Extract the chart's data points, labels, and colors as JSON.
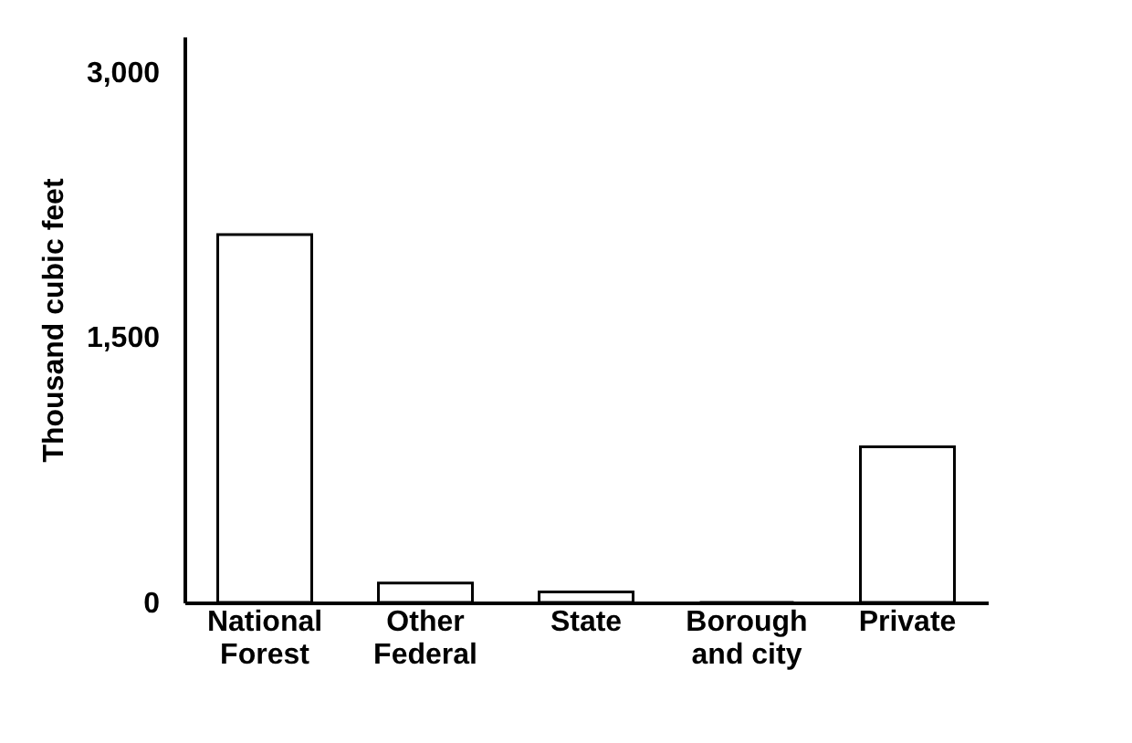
{
  "chart_data": {
    "type": "bar",
    "ylabel": "Thousand cubic feet",
    "categories": [
      "National Forest",
      "Other Federal",
      "State",
      "Borough and city",
      "Private"
    ],
    "values": [
      2080,
      110,
      60,
      0,
      880
    ],
    "color": "#000000",
    "ylim": [
      0,
      3200
    ],
    "yticks": [
      0,
      {
        "value": 1500,
        "label": "1,500"
      },
      {
        "value": 3000,
        "label": "3,000"
      }
    ],
    "grid": false
  }
}
